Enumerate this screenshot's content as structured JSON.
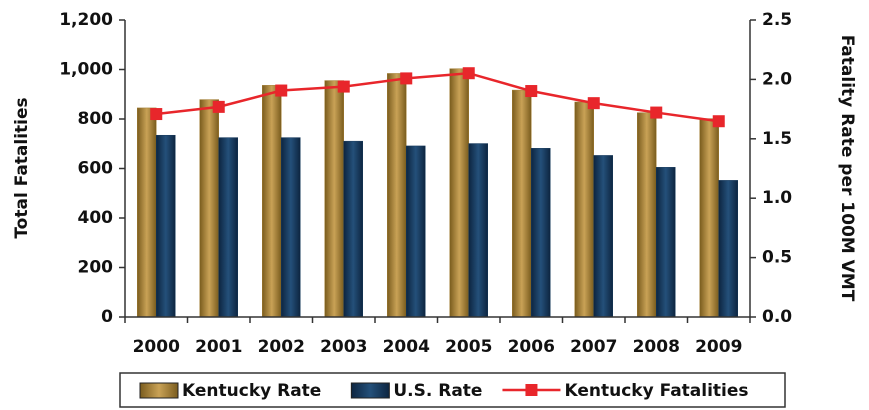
{
  "chart_data": {
    "type": "bar_line",
    "categories": [
      "2000",
      "2001",
      "2002",
      "2003",
      "2004",
      "2005",
      "2006",
      "2007",
      "2008",
      "2009"
    ],
    "series": [
      {
        "name": "Kentucky Rate",
        "type": "bar",
        "axis": "y2",
        "color": "#a17d33",
        "values": [
          1.76,
          1.83,
          1.95,
          1.99,
          2.05,
          2.09,
          1.91,
          1.81,
          1.72,
          1.67
        ]
      },
      {
        "name": "U.S. Rate",
        "type": "bar",
        "axis": "y2",
        "color": "#16385a",
        "values": [
          1.53,
          1.51,
          1.51,
          1.48,
          1.44,
          1.46,
          1.42,
          1.36,
          1.26,
          1.15
        ]
      },
      {
        "name": "Kentucky Fatalities",
        "type": "line",
        "axis": "y",
        "color": "#e8262b",
        "values": [
          820,
          849,
          915,
          931,
          964,
          985,
          913,
          864,
          826,
          791
        ]
      }
    ],
    "ylabel": "Total Fatalities",
    "y2label": "Fatality Rate per 100M VMT",
    "ylim": [
      0,
      1200
    ],
    "yticks": [
      0,
      200,
      400,
      600,
      800,
      {
        "value": 1000,
        "label": "1,000"
      },
      {
        "value": 1200,
        "label": "1,200"
      }
    ],
    "y2lim": [
      0,
      2.5
    ],
    "y2ticks": [
      {
        "value": 0,
        "label": "0.0"
      },
      0.5,
      {
        "value": 1,
        "label": "1.0"
      },
      1.5,
      {
        "value": 2,
        "label": "2.0"
      },
      2.5
    ],
    "legend": "bottom"
  }
}
